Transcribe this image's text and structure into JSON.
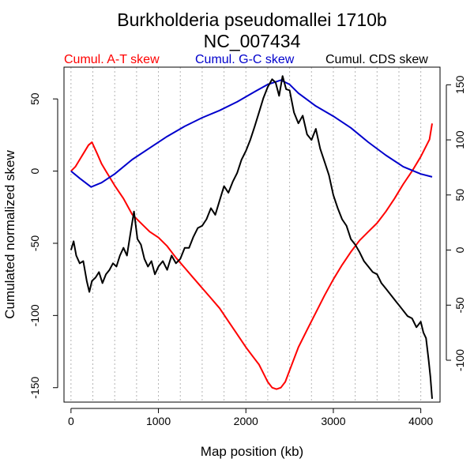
{
  "chart_data": {
    "type": "line",
    "title": "Burkholderia pseudomallei 1710b",
    "subtitle": "NC_007434",
    "xlabel": "Map position (kb)",
    "ylabel": "Cumulated normalized skew",
    "xlim": [
      -80,
      4220
    ],
    "ylim": [
      -160,
      72
    ],
    "y2lim": [
      -138,
      166
    ],
    "x_ticks": [
      0,
      1000,
      2000,
      3000,
      4000
    ],
    "y_ticks": [
      -150,
      -100,
      -50,
      0,
      50
    ],
    "y2_ticks": [
      -100,
      -50,
      0,
      50,
      100,
      150
    ],
    "vgrid": [
      0,
      250,
      500,
      750,
      1000,
      1250,
      1500,
      1750,
      2000,
      2250,
      2500,
      2750,
      3000,
      3250,
      3500,
      3750,
      4000
    ],
    "legend_position": "top",
    "series": [
      {
        "name": "Cumul. A-T skew",
        "color": "#ff0000",
        "axis": "left",
        "x": [
          0,
          50,
          100,
          150,
          200,
          240,
          300,
          350,
          400,
          500,
          600,
          700,
          800,
          900,
          1000,
          1100,
          1200,
          1300,
          1400,
          1500,
          1600,
          1700,
          1800,
          1900,
          2000,
          2100,
          2150,
          2200,
          2250,
          2300,
          2350,
          2400,
          2450,
          2500,
          2600,
          2700,
          2800,
          2900,
          3000,
          3100,
          3200,
          3300,
          3400,
          3500,
          3600,
          3700,
          3800,
          3900,
          4000,
          4050,
          4100,
          4130
        ],
        "y": [
          0,
          3,
          8,
          13,
          18,
          20,
          12,
          5,
          0,
          -10,
          -19,
          -30,
          -36,
          -42,
          -46,
          -52,
          -60,
          -67,
          -74,
          -81,
          -88,
          -95,
          -104,
          -113,
          -122,
          -130,
          -134,
          -140,
          -146,
          -150,
          -151,
          -150,
          -146,
          -138,
          -122,
          -110,
          -98,
          -86,
          -75,
          -65,
          -56,
          -48,
          -42,
          -36,
          -28,
          -19,
          -9,
          0,
          10,
          16,
          22,
          33
        ]
      },
      {
        "name": "Cumul. G-C skew",
        "color": "#0000cc",
        "axis": "left",
        "x": [
          0,
          100,
          230,
          350,
          500,
          700,
          900,
          1100,
          1300,
          1500,
          1700,
          1900,
          2100,
          2250,
          2350,
          2400,
          2500,
          2600,
          2800,
          3000,
          3200,
          3400,
          3600,
          3800,
          4000,
          4130
        ],
        "y": [
          0,
          -5,
          -11,
          -8,
          -2,
          8,
          16,
          24,
          31,
          37,
          42,
          48,
          55,
          60,
          62,
          63,
          60,
          54,
          45,
          38,
          30,
          20,
          11,
          3,
          -2,
          -4
        ]
      },
      {
        "name": "Cumul. CDS skew",
        "color": "#000000",
        "axis": "right",
        "x": [
          0,
          30,
          60,
          100,
          140,
          180,
          210,
          240,
          280,
          320,
          360,
          400,
          440,
          480,
          520,
          560,
          600,
          640,
          680,
          720,
          760,
          800,
          840,
          880,
          920,
          960,
          1000,
          1050,
          1100,
          1150,
          1200,
          1250,
          1300,
          1350,
          1400,
          1450,
          1500,
          1550,
          1600,
          1650,
          1700,
          1750,
          1800,
          1850,
          1900,
          1950,
          2000,
          2050,
          2100,
          2150,
          2200,
          2250,
          2300,
          2340,
          2380,
          2420,
          2460,
          2500,
          2550,
          2600,
          2650,
          2700,
          2750,
          2800,
          2850,
          2900,
          2950,
          3000,
          3050,
          3100,
          3150,
          3200,
          3250,
          3300,
          3350,
          3400,
          3450,
          3500,
          3550,
          3600,
          3650,
          3700,
          3750,
          3800,
          3850,
          3900,
          3950,
          4000,
          4030,
          4060,
          4090,
          4110,
          4130
        ],
        "y": [
          0,
          8,
          -5,
          -12,
          -10,
          -28,
          -38,
          -28,
          -25,
          -20,
          -30,
          -22,
          -18,
          -12,
          -15,
          -5,
          2,
          -5,
          15,
          35,
          10,
          5,
          -8,
          -15,
          -10,
          -22,
          -15,
          -10,
          -18,
          -5,
          -12,
          -8,
          2,
          2,
          12,
          20,
          22,
          28,
          38,
          32,
          45,
          58,
          52,
          62,
          70,
          82,
          90,
          100,
          112,
          125,
          138,
          148,
          155,
          152,
          140,
          158,
          146,
          145,
          125,
          115,
          122,
          105,
          100,
          110,
          92,
          80,
          68,
          50,
          38,
          28,
          22,
          10,
          5,
          -2,
          -10,
          -15,
          -20,
          -22,
          -30,
          -35,
          -40,
          -45,
          -50,
          -55,
          -60,
          -62,
          -70,
          -65,
          -75,
          -80,
          -100,
          -115,
          -135
        ]
      }
    ]
  }
}
